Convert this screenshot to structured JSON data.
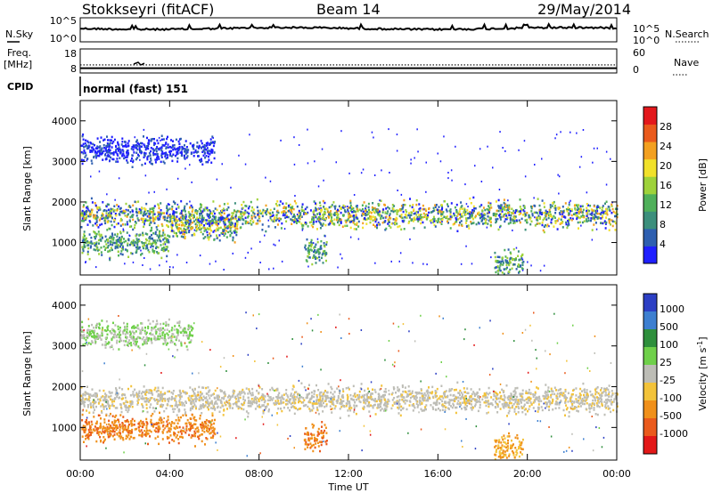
{
  "header": {
    "station": "Stokkseyri (fitACF)",
    "beam": "Beam 14",
    "date": "29/May/2014"
  },
  "nsky_panel": {
    "left_label": "N.Sky",
    "right_label": "N.Search",
    "y_ticks_left": [
      "10^5",
      "10^0"
    ],
    "y_ticks_right": [
      "10^5",
      "10^0"
    ]
  },
  "freq_panel": {
    "left_label_line1": "Freq.",
    "left_label_line2": "[MHz]",
    "right_label": "Nave",
    "y_ticks_left": [
      "18",
      "8"
    ],
    "y_ticks_right": [
      "60",
      "0"
    ],
    "freq_level_mhz": 10,
    "nave_level": 22
  },
  "cpid": {
    "label": "CPID",
    "value": "normal (fast) 151"
  },
  "time_axis": {
    "label": "Time UT",
    "ticks": [
      "00:00",
      "04:00",
      "08:00",
      "12:00",
      "16:00",
      "20:00",
      "00:00"
    ]
  },
  "chart_data": [
    {
      "type": "heatmap",
      "title": "",
      "xlabel": "Time UT",
      "ylabel": "Slant Range [km]",
      "x_range_hours": [
        0,
        24
      ],
      "ylim": [
        200,
        4500
      ],
      "y_ticks": [
        "1000",
        "2000",
        "3000",
        "4000"
      ],
      "colorbar": {
        "label": "Power [dB]",
        "ticks": [
          "4",
          "8",
          "12",
          "16",
          "20",
          "24",
          "28"
        ],
        "colors": [
          "#1f1fff",
          "#2e5fb0",
          "#3c8f7c",
          "#4fb05a",
          "#9ed23a",
          "#f1e12a",
          "#f3a020",
          "#ea5a1c",
          "#e3181c"
        ]
      },
      "features": [
        {
          "t_start": 0.0,
          "t_end": 24.0,
          "range_km": 1700,
          "level": "high"
        },
        {
          "t_start": 0.0,
          "t_end": 6.0,
          "range_km": 3300,
          "level": "low"
        },
        {
          "t_start": 4.0,
          "t_end": 7.0,
          "range_km": 1400,
          "level": "high"
        },
        {
          "t_start": 0.0,
          "t_end": 4.0,
          "range_km": 1000,
          "level": "medium"
        },
        {
          "t_start": 10.0,
          "t_end": 11.0,
          "range_km": 800,
          "level": "medium"
        },
        {
          "t_start": 18.5,
          "t_end": 19.8,
          "range_km": 500,
          "level": "medium"
        }
      ]
    },
    {
      "type": "heatmap",
      "title": "",
      "xlabel": "Time UT",
      "ylabel": "Slant Range [km]",
      "x_range_hours": [
        0,
        24
      ],
      "ylim": [
        200,
        4500
      ],
      "y_ticks": [
        "1000",
        "2000",
        "3000",
        "4000"
      ],
      "colorbar": {
        "label": "Velocity [m s^-1]",
        "ticks": [
          "1000",
          "500",
          "100",
          "25",
          "-25",
          "-100",
          "-500",
          "-1000"
        ],
        "colors": [
          "#2c3fc4",
          "#3d7fd0",
          "#2e8f3c",
          "#6fd04a",
          "#bdbdb6",
          "#f3c33a",
          "#f0901a",
          "#ea5a1c",
          "#e31818"
        ]
      },
      "features": [
        {
          "t_start": 0.0,
          "t_end": 24.0,
          "range_km": 1700,
          "level": "ground-scatter"
        },
        {
          "t_start": 0.0,
          "t_end": 6.0,
          "range_km": 1000,
          "level": "-500"
        },
        {
          "t_start": 10.0,
          "t_end": 11.0,
          "range_km": 800,
          "level": "-500"
        },
        {
          "t_start": 18.5,
          "t_end": 19.8,
          "range_km": 500,
          "level": "-100"
        },
        {
          "t_start": 0.0,
          "t_end": 5.0,
          "range_km": 3300,
          "level": "25"
        }
      ]
    }
  ]
}
